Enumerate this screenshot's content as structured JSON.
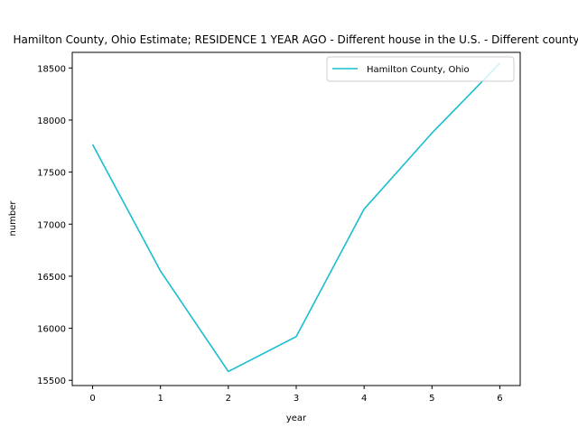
{
  "chart_data": {
    "type": "line",
    "title": "Hamilton County, Ohio Estimate; RESIDENCE 1 YEAR AGO - Different house in the U.S. - Different county",
    "xlabel": "year",
    "ylabel": "number",
    "x": [
      0,
      1,
      2,
      3,
      4,
      5,
      6
    ],
    "x_ticks": [
      "0",
      "1",
      "2",
      "3",
      "4",
      "5",
      "6"
    ],
    "y_ticks": [
      "15500",
      "16000",
      "16500",
      "17000",
      "17500",
      "18000",
      "18500"
    ],
    "xlim": [
      -0.3,
      6.3
    ],
    "ylim": [
      15450,
      18650
    ],
    "grid": false,
    "legend_position": "upper right",
    "series": [
      {
        "name": "Hamilton County, Ohio",
        "color": "#17becf",
        "x": [
          0,
          1,
          2,
          3,
          4,
          5,
          6
        ],
        "values": [
          17765,
          16550,
          15585,
          15920,
          17145,
          17875,
          18545
        ]
      }
    ]
  }
}
